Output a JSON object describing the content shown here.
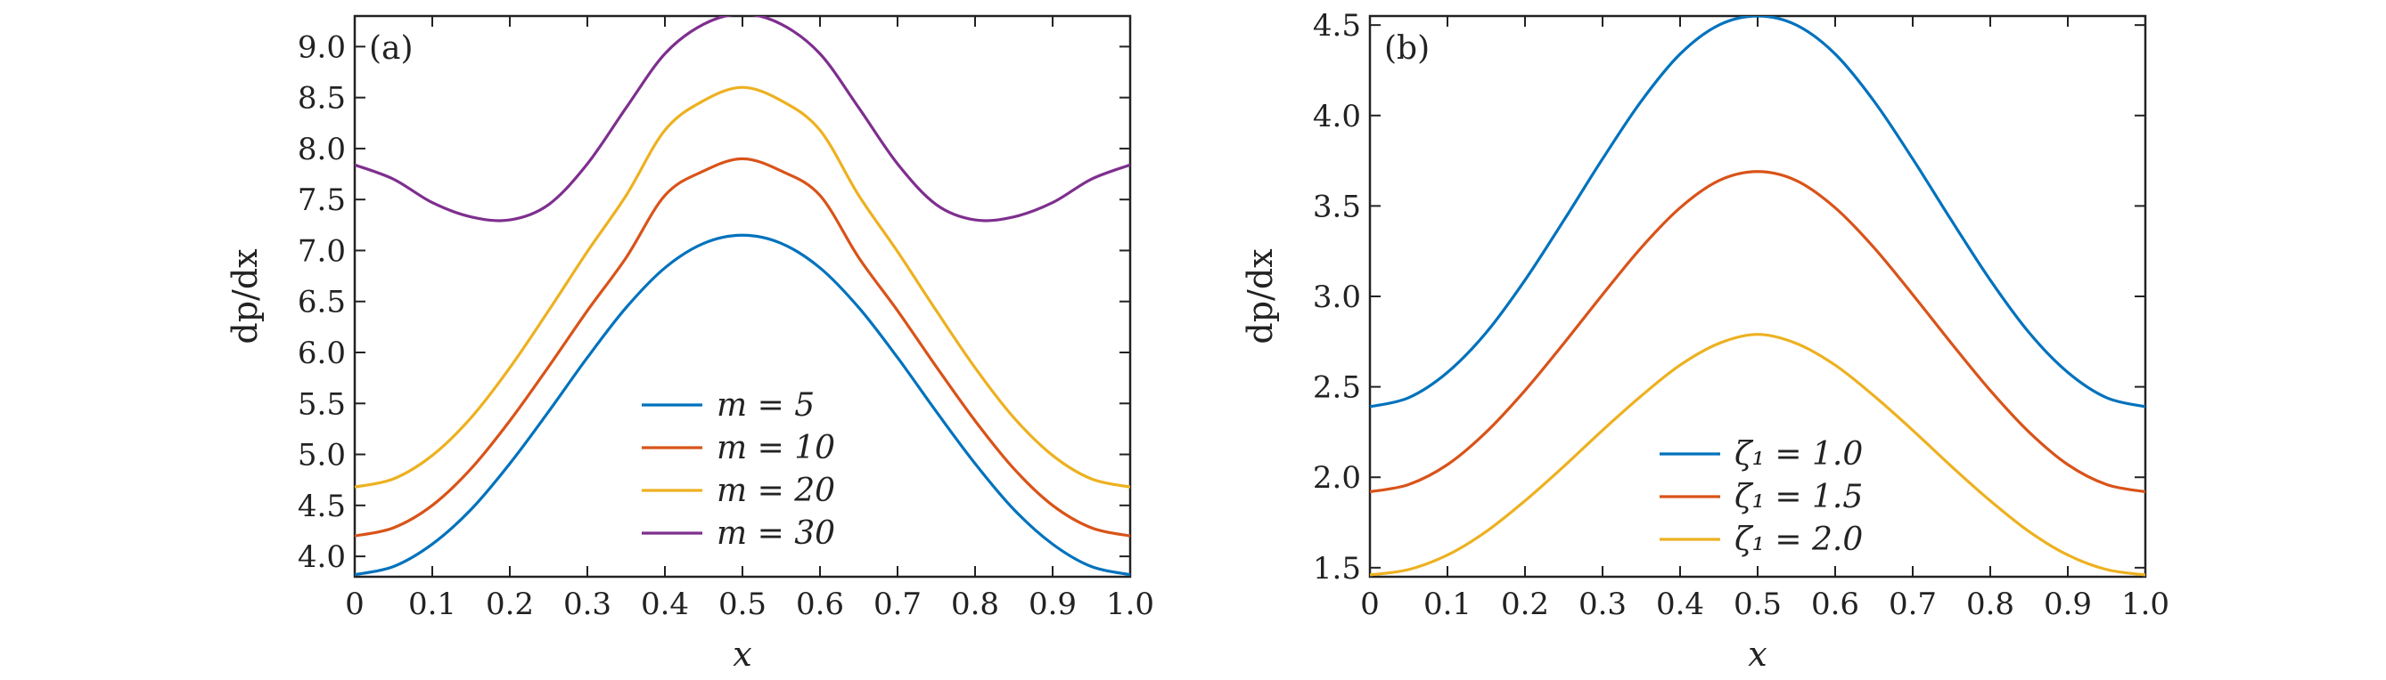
{
  "chart_data": [
    {
      "type": "line",
      "panel_label": "(a)",
      "xlabel": "x",
      "ylabel": "dp/dx",
      "xlim": [
        0,
        1.0
      ],
      "ylim": [
        3.8,
        9.3
      ],
      "xticks": [
        0,
        0.1,
        0.2,
        0.3,
        0.4,
        0.5,
        0.6,
        0.7,
        0.8,
        0.9,
        1.0
      ],
      "xtick_labels": [
        "0",
        "0.1",
        "0.2",
        "0.3",
        "0.4",
        "0.5",
        "0.6",
        "0.7",
        "0.8",
        "0.9",
        "1.0"
      ],
      "yticks": [
        4.0,
        4.5,
        5.0,
        5.5,
        6.0,
        6.5,
        7.0,
        7.5,
        8.0,
        8.5,
        9.0
      ],
      "ytick_labels": [
        "4.0",
        "4.5",
        "5.0",
        "5.5",
        "6.0",
        "6.5",
        "7.0",
        "7.5",
        "8.0",
        "8.5",
        "9.0"
      ],
      "legend_position": "lower-center",
      "x": [
        0,
        0.05,
        0.1,
        0.15,
        0.2,
        0.25,
        0.3,
        0.35,
        0.4,
        0.45,
        0.5,
        0.55,
        0.6,
        0.65,
        0.7,
        0.75,
        0.8,
        0.85,
        0.9,
        0.95,
        1.0
      ],
      "series": [
        {
          "name": "m = 5",
          "color": "#0072BD",
          "values": [
            3.82,
            3.9,
            4.12,
            4.46,
            4.91,
            5.42,
            5.95,
            6.44,
            6.83,
            7.07,
            7.15,
            7.07,
            6.83,
            6.44,
            5.95,
            5.42,
            4.91,
            4.46,
            4.12,
            3.9,
            3.82
          ]
        },
        {
          "name": "m = 10",
          "color": "#D95319",
          "values": [
            4.2,
            4.28,
            4.5,
            4.86,
            5.33,
            5.86,
            6.41,
            6.93,
            7.54,
            7.78,
            7.9,
            7.78,
            7.54,
            6.93,
            6.41,
            5.86,
            5.33,
            4.86,
            4.5,
            4.28,
            4.2
          ]
        },
        {
          "name": "m = 20",
          "color": "#EDB120",
          "values": [
            4.68,
            4.76,
            4.99,
            5.36,
            5.85,
            6.41,
            6.99,
            7.54,
            8.18,
            8.47,
            8.6,
            8.47,
            8.18,
            7.54,
            6.99,
            6.41,
            5.85,
            5.36,
            4.99,
            4.76,
            4.68
          ]
        },
        {
          "name": "m = 30",
          "color": "#7E2F8E",
          "values": [
            7.84,
            7.7,
            7.47,
            7.33,
            7.3,
            7.45,
            7.85,
            8.4,
            8.93,
            9.22,
            9.32,
            9.22,
            8.93,
            8.4,
            7.85,
            7.45,
            7.3,
            7.33,
            7.47,
            7.7,
            7.84
          ]
        }
      ]
    },
    {
      "type": "line",
      "panel_label": "(b)",
      "xlabel": "x",
      "ylabel": "dp/dx",
      "xlim": [
        0,
        1.0
      ],
      "ylim": [
        1.45,
        4.55
      ],
      "xticks": [
        0,
        0.1,
        0.2,
        0.3,
        0.4,
        0.5,
        0.6,
        0.7,
        0.8,
        0.9,
        1.0
      ],
      "xtick_labels": [
        "0",
        "0.1",
        "0.2",
        "0.3",
        "0.4",
        "0.5",
        "0.6",
        "0.7",
        "0.8",
        "0.9",
        "1.0"
      ],
      "yticks": [
        1.5,
        2.0,
        2.5,
        3.0,
        3.5,
        4.0,
        4.5
      ],
      "ytick_labels": [
        "1.5",
        "2.0",
        "2.5",
        "3.0",
        "3.5",
        "4.0",
        "4.5"
      ],
      "legend_position": "lower-center",
      "x": [
        0,
        0.05,
        0.1,
        0.15,
        0.2,
        0.25,
        0.3,
        0.35,
        0.4,
        0.45,
        0.5,
        0.55,
        0.6,
        0.65,
        0.7,
        0.75,
        0.8,
        0.85,
        0.9,
        0.95,
        1.0
      ],
      "series": [
        {
          "name": "ζ₁ = 1.0",
          "color": "#0072BD",
          "values": [
            2.39,
            2.44,
            2.58,
            2.8,
            3.09,
            3.42,
            3.76,
            4.08,
            4.34,
            4.5,
            4.55,
            4.5,
            4.34,
            4.08,
            3.76,
            3.42,
            3.09,
            2.8,
            2.58,
            2.44,
            2.39
          ]
        },
        {
          "name": "ζ₁ = 1.5",
          "color": "#D95319",
          "values": [
            1.92,
            1.96,
            2.07,
            2.25,
            2.48,
            2.74,
            3.01,
            3.27,
            3.49,
            3.64,
            3.69,
            3.64,
            3.49,
            3.27,
            3.01,
            2.74,
            2.48,
            2.25,
            2.07,
            1.96,
            1.92
          ]
        },
        {
          "name": "ζ₁ = 2.0",
          "color": "#EDB120",
          "values": [
            1.46,
            1.49,
            1.57,
            1.7,
            1.87,
            2.06,
            2.26,
            2.45,
            2.62,
            2.74,
            2.79,
            2.74,
            2.62,
            2.45,
            2.26,
            2.06,
            1.87,
            1.7,
            1.57,
            1.49,
            1.46
          ]
        }
      ]
    }
  ]
}
